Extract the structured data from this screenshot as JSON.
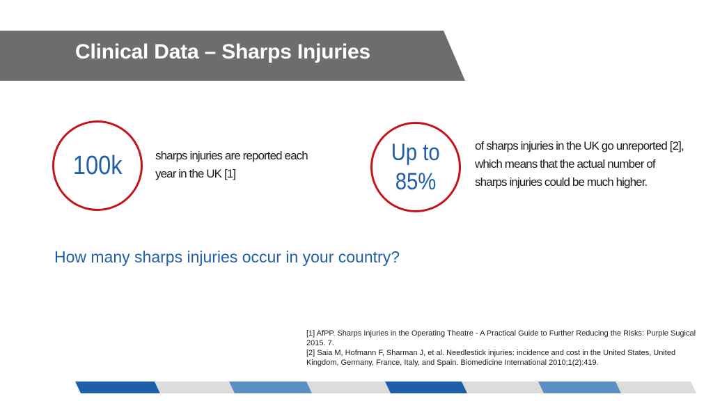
{
  "slide": {
    "title": "Clinical Data – Sharps Injuries"
  },
  "stats": [
    {
      "value": "100k",
      "description": "sharps injuries are reported each year in the UK [1]"
    },
    {
      "value_line1": "Up to",
      "value_line2": "85%",
      "description": "of sharps injuries in the UK go unreported [2], which means that the actual number of sharps injuries could be much higher."
    }
  ],
  "question": "How many sharps injuries occur in your country?",
  "references": [
    " [1] AfPP. Sharps Injuries in the Operating Theatre - A Practical Guide to Further Reducing the Risks: Purple Sugical 2015. 7.",
    "[2] Saia M, Hofmann F, Sharman J, et al. Needlestick injuries: incidence and cost in the United States, United Kingdom, Germany, France, Italy, and Spain. Biomedicine International 2010;1(2):419."
  ],
  "colors": {
    "banner": "#6d6d6d",
    "accent_red": "#c3141c",
    "accent_blue": "#1f5ea8",
    "footer_dark_blue": "#1f5ea8",
    "footer_light_blue": "#5b8fc4",
    "footer_gray": "#dcdcdc"
  }
}
